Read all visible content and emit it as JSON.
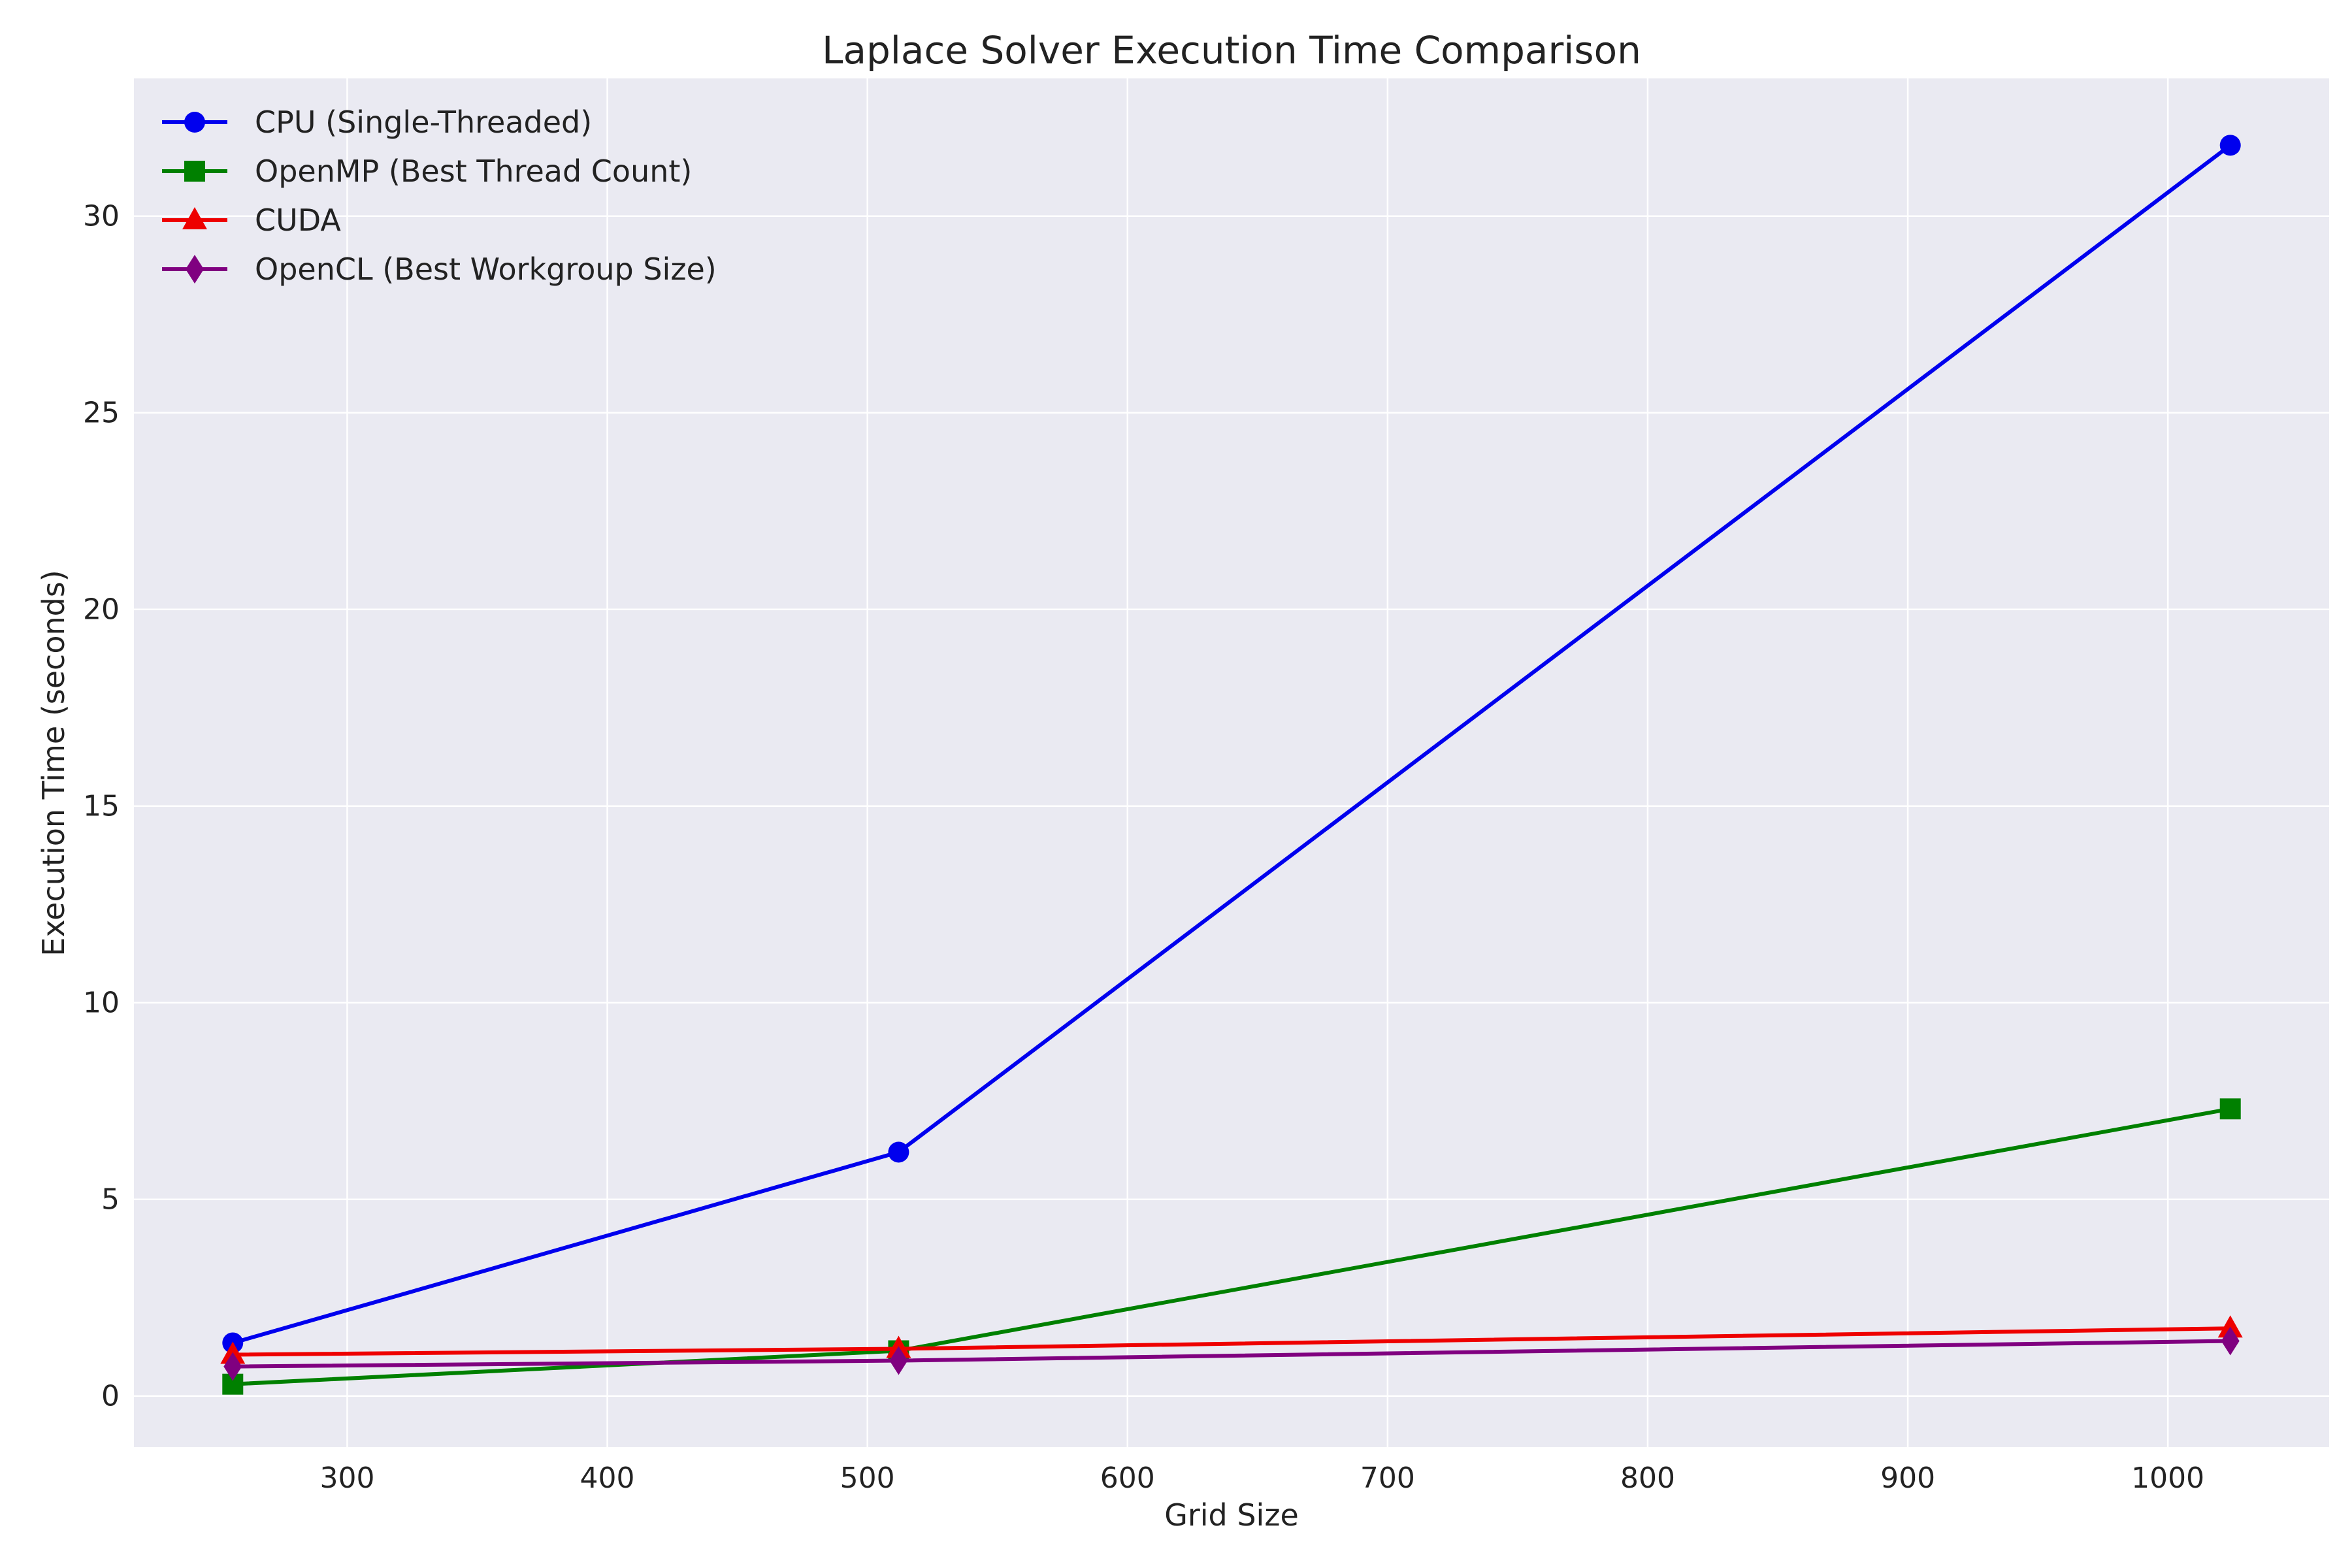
{
  "chart_data": {
    "type": "line",
    "title": "Laplace Solver Execution Time Comparison",
    "xlabel": "Grid Size",
    "ylabel": "Execution Time (seconds)",
    "xlim": [
      218,
      1062
    ],
    "ylim": [
      -1.3,
      33.5
    ],
    "x_ticks": [
      300,
      400,
      500,
      600,
      700,
      800,
      900,
      1000
    ],
    "y_ticks": [
      0,
      5,
      10,
      15,
      20,
      25,
      30
    ],
    "grid": true,
    "legend_position": "top-left",
    "x": [
      256,
      512,
      1024
    ],
    "series": [
      {
        "name": "CPU (Single-Threaded)",
        "values": [
          1.35,
          6.2,
          31.8
        ],
        "color": "#0000ee",
        "marker": "circle"
      },
      {
        "name": "OpenMP (Best Thread Count)",
        "values": [
          0.3,
          1.15,
          7.3
        ],
        "color": "#008000",
        "marker": "square"
      },
      {
        "name": "CUDA",
        "values": [
          1.05,
          1.2,
          1.72
        ],
        "color": "#ee0000",
        "marker": "triangle"
      },
      {
        "name": "OpenCL (Best Workgroup Size)",
        "values": [
          0.75,
          0.9,
          1.4
        ],
        "color": "#800080",
        "marker": "diamond"
      }
    ]
  }
}
